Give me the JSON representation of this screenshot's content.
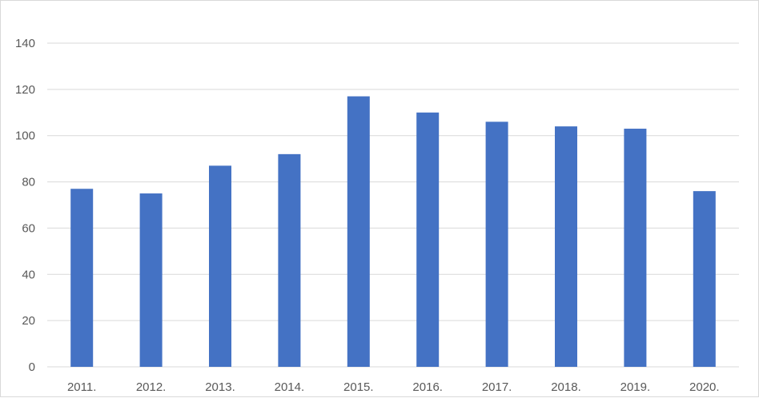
{
  "chart_data": {
    "type": "bar",
    "title": "",
    "xlabel": "",
    "ylabel": "",
    "categories": [
      "2011.",
      "2012.",
      "2013.",
      "2014.",
      "2015.",
      "2016.",
      "2017.",
      "2018.",
      "2019.",
      "2020."
    ],
    "values": [
      77,
      75,
      87,
      92,
      117,
      110,
      106,
      104,
      103,
      76
    ],
    "ylim": [
      0,
      140
    ],
    "yticks": [
      0,
      20,
      40,
      60,
      80,
      100,
      120,
      140
    ],
    "grid": true,
    "legend": "none",
    "colors": {
      "bar": "#4472c4",
      "grid": "#d9d9d9",
      "text": "#595959"
    }
  }
}
